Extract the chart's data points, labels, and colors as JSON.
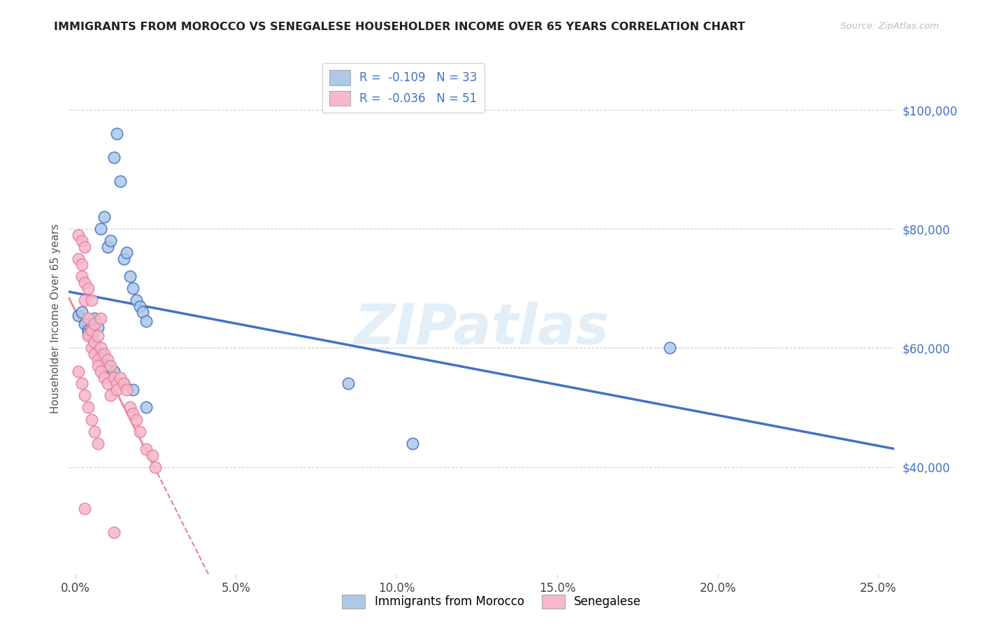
{
  "title": "IMMIGRANTS FROM MOROCCO VS SENEGALESE HOUSEHOLDER INCOME OVER 65 YEARS CORRELATION CHART",
  "source": "Source: ZipAtlas.com",
  "ylabel": "Householder Income Over 65 years",
  "xlabel_ticks": [
    "0.0%",
    "5.0%",
    "10.0%",
    "15.0%",
    "20.0%",
    "25.0%"
  ],
  "xlabel_vals": [
    0.0,
    0.05,
    0.1,
    0.15,
    0.2,
    0.25
  ],
  "ylabel_ticks": [
    "$40,000",
    "$60,000",
    "$80,000",
    "$100,000"
  ],
  "ylabel_vals": [
    40000,
    60000,
    80000,
    100000
  ],
  "xlim": [
    -0.002,
    0.255
  ],
  "ylim": [
    22000,
    108000
  ],
  "legend_entry1": "R =  -0.109   N = 33",
  "legend_entry2": "R =  -0.036   N = 51",
  "legend_label1": "Immigrants from Morocco",
  "legend_label2": "Senegalese",
  "color_morocco": "#adc8e8",
  "color_senegal": "#f5b8cc",
  "color_morocco_line": "#4472c4",
  "color_senegal_line": "#e8829a",
  "color_title": "#222222",
  "color_source": "#bbbbbb",
  "color_yaxis_right": "#4472c4",
  "watermark": "ZIPatlas",
  "morocco_x": [
    0.001,
    0.002,
    0.003,
    0.004,
    0.005,
    0.006,
    0.007,
    0.008,
    0.009,
    0.01,
    0.011,
    0.012,
    0.013,
    0.014,
    0.015,
    0.016,
    0.017,
    0.018,
    0.019,
    0.02,
    0.021,
    0.022,
    0.004,
    0.006,
    0.008,
    0.01,
    0.012,
    0.015,
    0.018,
    0.022,
    0.085,
    0.105,
    0.185
  ],
  "morocco_y": [
    65500,
    66000,
    64000,
    63000,
    62000,
    65000,
    63500,
    80000,
    82000,
    77000,
    78000,
    92000,
    96000,
    88000,
    75000,
    76000,
    72000,
    70000,
    68000,
    67000,
    66000,
    64500,
    62500,
    61000,
    59000,
    57000,
    56000,
    54000,
    53000,
    50000,
    54000,
    44000,
    60000
  ],
  "senegal_x": [
    0.001,
    0.001,
    0.002,
    0.002,
    0.002,
    0.003,
    0.003,
    0.003,
    0.004,
    0.004,
    0.004,
    0.005,
    0.005,
    0.005,
    0.006,
    0.006,
    0.006,
    0.007,
    0.007,
    0.007,
    0.008,
    0.008,
    0.008,
    0.009,
    0.009,
    0.01,
    0.01,
    0.011,
    0.011,
    0.012,
    0.013,
    0.013,
    0.014,
    0.015,
    0.016,
    0.017,
    0.018,
    0.019,
    0.02,
    0.022,
    0.024,
    0.025,
    0.001,
    0.002,
    0.003,
    0.004,
    0.005,
    0.006,
    0.007,
    0.003,
    0.012
  ],
  "senegal_y": [
    79000,
    75000,
    78000,
    74000,
    72000,
    77000,
    71000,
    68000,
    70000,
    65000,
    62000,
    68000,
    63000,
    60000,
    64000,
    61000,
    59000,
    62000,
    58000,
    57000,
    65000,
    60000,
    56000,
    59000,
    55000,
    58000,
    54000,
    57000,
    52000,
    55000,
    54000,
    53000,
    55000,
    54000,
    53000,
    50000,
    49000,
    48000,
    46000,
    43000,
    42000,
    40000,
    56000,
    54000,
    52000,
    50000,
    48000,
    46000,
    44000,
    33000,
    29000
  ]
}
